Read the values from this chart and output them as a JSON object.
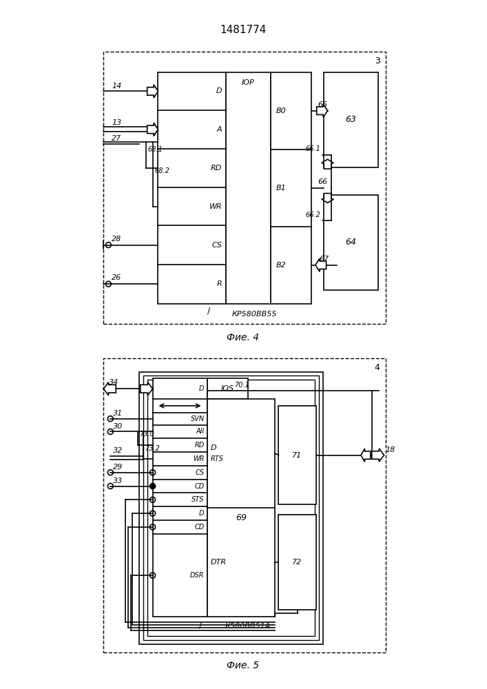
{
  "title": "1481774",
  "fig4_label": "Фие. 4",
  "fig5_label": "Фие. 5",
  "bg_color": "#ffffff",
  "lc": "#000000"
}
